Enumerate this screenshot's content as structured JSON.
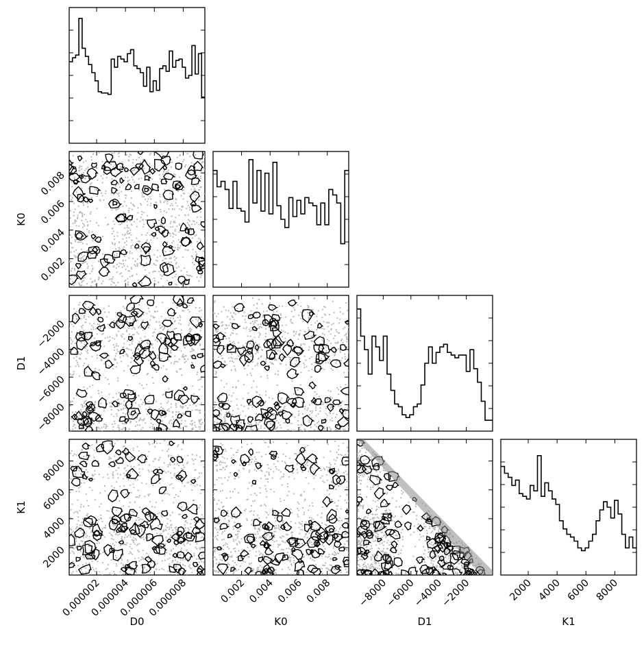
{
  "chart_data": {
    "type": "scatter",
    "kind": "corner-plot",
    "parameters": [
      "D0",
      "K0",
      "D1",
      "K1"
    ],
    "axis_labels": {
      "x": [
        "D0",
        "K0",
        "D1",
        "K1"
      ],
      "y": [
        "",
        "K0",
        "D1",
        "K1"
      ]
    },
    "ranges": {
      "D0": [
        1e-07,
        9.5e-06
      ],
      "K0": [
        1e-05,
        0.0095
      ],
      "D1": [
        -9900,
        -100
      ],
      "K1": [
        100,
        9500
      ]
    },
    "tick_values": {
      "D0": [
        2e-06,
        4e-06,
        6e-06,
        8e-06
      ],
      "K0": [
        0.002,
        0.004,
        0.006,
        0.008
      ],
      "D1": [
        -8000,
        -6000,
        -4000,
        -2000
      ],
      "K1": [
        2000,
        4000,
        6000,
        8000
      ]
    },
    "tick_labels": {
      "D0": [
        "0.000002",
        "0.000004",
        "0.000006",
        "0.000008"
      ],
      "K0": [
        "0.002",
        "0.004",
        "0.006",
        "0.008"
      ],
      "D1": [
        "−8000",
        "−6000",
        "−4000",
        "−2000"
      ],
      "K1": [
        "2000",
        "4000",
        "6000",
        "8000"
      ]
    },
    "histograms": {
      "D0": [
        0.6,
        0.63,
        0.65,
        0.92,
        0.7,
        0.64,
        0.58,
        0.52,
        0.46,
        0.38,
        0.37,
        0.37,
        0.36,
        0.62,
        0.56,
        0.64,
        0.62,
        0.6,
        0.66,
        0.69,
        0.57,
        0.55,
        0.52,
        0.42,
        0.56,
        0.38,
        0.46,
        0.39,
        0.55,
        0.57,
        0.53,
        0.68,
        0.56,
        0.61,
        0.62,
        0.56,
        0.48,
        0.5,
        0.72,
        0.51,
        0.66,
        0.34
      ],
      "K0": [
        0.86,
        0.74,
        0.78,
        0.72,
        0.58,
        0.78,
        0.58,
        0.56,
        0.48,
        0.94,
        0.62,
        0.86,
        0.56,
        0.84,
        0.54,
        0.92,
        0.6,
        0.5,
        0.44,
        0.66,
        0.52,
        0.64,
        0.54,
        0.66,
        0.62,
        0.6,
        0.46,
        0.62,
        0.46,
        0.72,
        0.68,
        0.62,
        0.32,
        0.86
      ],
      "D1": [
        0.9,
        0.7,
        0.6,
        0.42,
        0.7,
        0.62,
        0.52,
        0.7,
        0.42,
        0.3,
        0.2,
        0.18,
        0.12,
        0.1,
        0.12,
        0.18,
        0.2,
        0.34,
        0.5,
        0.62,
        0.5,
        0.58,
        0.62,
        0.64,
        0.58,
        0.56,
        0.54,
        0.56,
        0.56,
        0.44,
        0.6,
        0.46,
        0.36,
        0.22,
        0.08,
        0.08
      ],
      "K1": [
        0.8,
        0.75,
        0.72,
        0.66,
        0.7,
        0.6,
        0.58,
        0.56,
        0.66,
        0.62,
        0.88,
        0.58,
        0.68,
        0.62,
        0.56,
        0.52,
        0.4,
        0.34,
        0.3,
        0.28,
        0.25,
        0.2,
        0.18,
        0.2,
        0.25,
        0.3,
        0.4,
        0.48,
        0.54,
        0.5,
        0.42,
        0.55,
        0.45,
        0.3,
        0.2,
        0.28,
        0.2
      ]
    },
    "colors": {
      "hist": "#000000",
      "contour": "#000000",
      "fill": "#8c8c8c",
      "points": "#b8b8b8"
    }
  }
}
